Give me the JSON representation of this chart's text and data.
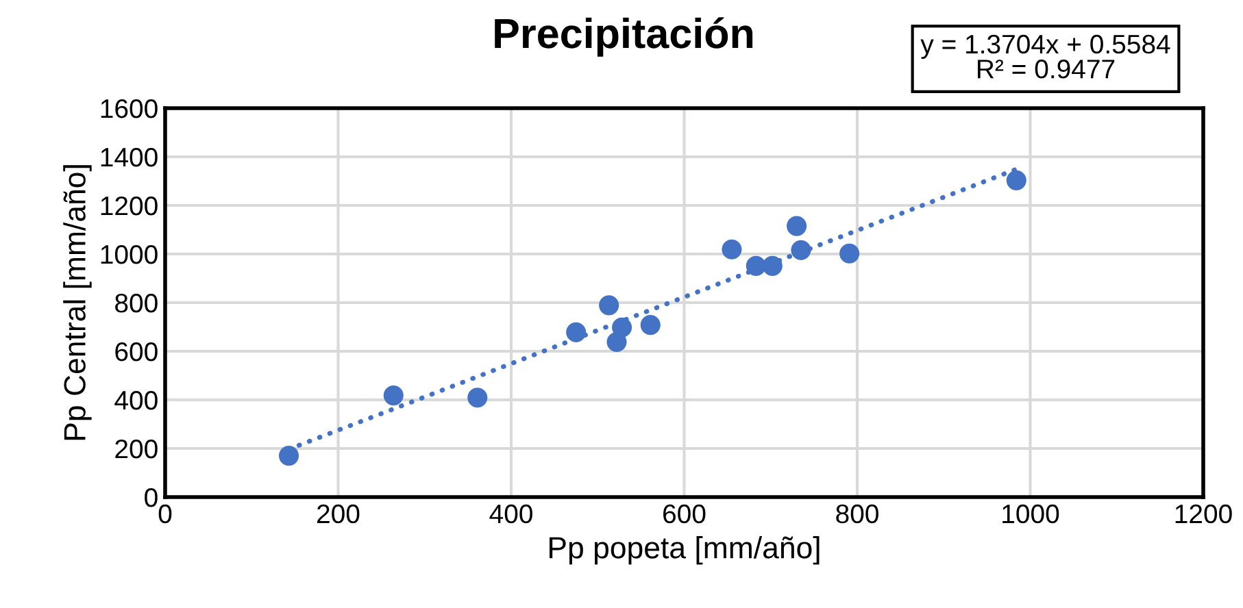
{
  "chart_data": {
    "type": "scatter",
    "title": "Precipitación",
    "xlabel": "Pp popeta [mm/año]",
    "ylabel": "Pp Central [mm/año]",
    "xlim": [
      0,
      1200
    ],
    "xticks": [
      0,
      200,
      400,
      600,
      800,
      1000,
      1200
    ],
    "ylim": [
      0,
      1600
    ],
    "yticks": [
      0,
      200,
      400,
      600,
      800,
      1000,
      1200,
      1400,
      1600
    ],
    "grid": true,
    "legend": false,
    "annotations": [
      "y = 1.3704x + 0.5584\nR² = 0.9477"
    ],
    "series": [
      {
        "marker": "circle",
        "color": "#4472c4",
        "x": [
          143,
          264,
          361,
          475,
          513,
          528,
          522,
          561,
          655,
          683,
          702,
          730,
          735,
          791,
          984
        ],
        "values": [
          170,
          418,
          409,
          678,
          789,
          698,
          638,
          708,
          1019,
          951,
          951,
          1115,
          1016,
          1002,
          1303
        ]
      },
      {
        "type": "line",
        "color": "#4472c4",
        "line_style": "dotted",
        "x": [
          143,
          984
        ],
        "values": [
          197,
          1349
        ]
      }
    ]
  }
}
